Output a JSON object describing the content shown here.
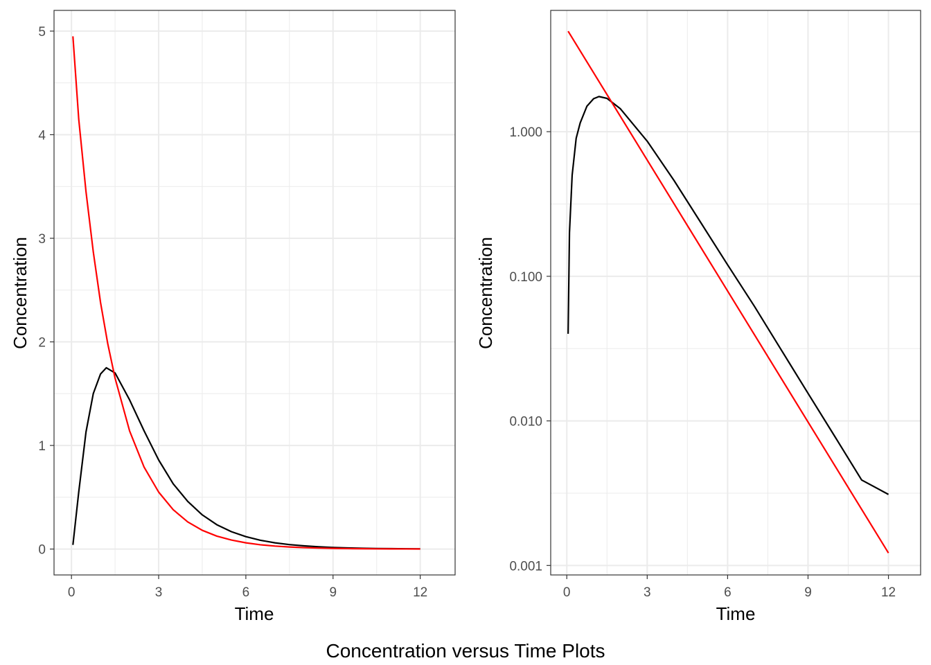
{
  "caption": "Concentration versus Time Plots",
  "colors": {
    "series_a": "#000000",
    "series_b": "#ff0000",
    "grid": "#ebebeb",
    "panel_border": "#333333",
    "tick_label": "#4d4d4d"
  },
  "chart_data": [
    {
      "type": "line",
      "xlabel": "Time",
      "ylabel": "Concentration",
      "y_scale": "linear",
      "xlim": [
        -0.6,
        13.2
      ],
      "ylim": [
        -0.25,
        5.2
      ],
      "x_ticks": [
        0,
        3,
        6,
        9,
        12
      ],
      "x_tick_labels": [
        "0",
        "3",
        "6",
        "9",
        "12"
      ],
      "y_ticks": [
        0,
        1,
        2,
        3,
        4,
        5
      ],
      "y_tick_labels": [
        "0",
        "1",
        "2",
        "3",
        "4",
        "5"
      ],
      "grid": true,
      "series": [
        {
          "color": "#000000",
          "x": [
            0.05,
            0.25,
            0.5,
            0.75,
            1.0,
            1.2,
            1.5,
            2.0,
            2.5,
            3.0,
            3.5,
            4.0,
            4.5,
            5.0,
            5.5,
            6.0,
            6.5,
            7.0,
            7.5,
            8.0,
            8.5,
            9.0,
            9.5,
            10.0,
            10.5,
            11.0,
            11.5,
            12.0
          ],
          "y": [
            0.04,
            0.55,
            1.13,
            1.5,
            1.69,
            1.75,
            1.7,
            1.44,
            1.14,
            0.86,
            0.63,
            0.46,
            0.33,
            0.235,
            0.168,
            0.12,
            0.085,
            0.06,
            0.043,
            0.031,
            0.022,
            0.0155,
            0.011,
            0.0078,
            0.0055,
            0.0039,
            0.0028,
            0.002
          ]
        },
        {
          "color": "#ff0000",
          "x": [
            0.05,
            0.25,
            0.5,
            0.75,
            1.0,
            1.25,
            1.5,
            2.0,
            2.5,
            3.0,
            3.5,
            4.0,
            4.5,
            5.0,
            5.5,
            6.0,
            6.5,
            7.0,
            7.5,
            8.0,
            8.5,
            9.0,
            9.5,
            10.0,
            10.5,
            11.0,
            11.5,
            12.0
          ],
          "y": [
            4.95,
            4.15,
            3.45,
            2.87,
            2.38,
            1.98,
            1.65,
            1.14,
            0.79,
            0.55,
            0.38,
            0.262,
            0.181,
            0.125,
            0.087,
            0.06,
            0.0415,
            0.0287,
            0.0199,
            0.0138,
            0.0095,
            0.0066,
            0.0046,
            0.0032,
            0.0022,
            0.00152,
            0.00105,
            0.00073
          ]
        }
      ]
    },
    {
      "type": "line",
      "xlabel": "Time",
      "ylabel": "Concentration",
      "y_scale": "log10",
      "xlim": [
        -0.6,
        13.2
      ],
      "ylim": [
        0.00086,
        6.9
      ],
      "x_ticks": [
        0,
        3,
        6,
        9,
        12
      ],
      "x_tick_labels": [
        "0",
        "3",
        "6",
        "9",
        "12"
      ],
      "y_ticks": [
        0.001,
        0.01,
        0.1,
        1
      ],
      "y_tick_labels": [
        "0.001",
        "0.010",
        "0.100",
        "1.000"
      ],
      "grid": true,
      "series": [
        {
          "color": "#000000",
          "x": [
            0.05,
            0.1,
            0.2,
            0.35,
            0.5,
            0.75,
            1.0,
            1.2,
            1.5,
            2.0,
            3.0,
            4.0,
            5.0,
            6.0,
            7.0,
            8.0,
            9.0,
            10.0,
            11.0,
            12.0
          ],
          "y": [
            0.04,
            0.2,
            0.5,
            0.9,
            1.15,
            1.5,
            1.69,
            1.75,
            1.7,
            1.44,
            0.86,
            0.46,
            0.235,
            0.12,
            0.062,
            0.031,
            0.0155,
            0.0078,
            0.0039,
            0.0031
          ]
        },
        {
          "color": "#ff0000",
          "x": [
            0.05,
            12.0
          ],
          "y": [
            4.95,
            0.00122
          ]
        }
      ]
    }
  ]
}
